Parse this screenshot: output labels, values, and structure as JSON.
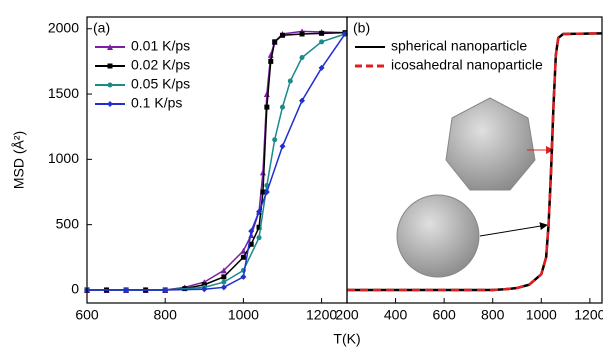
{
  "chart_data": [
    {
      "type": "line",
      "title": "(a)",
      "ylabel": "MSD (Å²)",
      "xlabel": "T(K)",
      "xlim": [
        600,
        1265
      ],
      "ylim": [
        -100,
        2090
      ],
      "xticks": [
        600,
        800,
        1000,
        1200
      ],
      "yticks": [
        0,
        500,
        1000,
        1500,
        2000
      ],
      "legend": "upper left",
      "series": [
        {
          "name": "0.01 K/ps",
          "color": "#7b1fa2",
          "marker": "triangle",
          "x": [
            600,
            650,
            700,
            750,
            800,
            850,
            900,
            950,
            1000,
            1020,
            1040,
            1050,
            1060,
            1070,
            1080,
            1100,
            1150,
            1200,
            1260
          ],
          "values": [
            0,
            0,
            0,
            0,
            0,
            20,
            60,
            150,
            300,
            420,
            600,
            900,
            1500,
            1800,
            1900,
            1960,
            1980,
            1975,
            1970
          ]
        },
        {
          "name": "0.02 K/ps",
          "color": "#000000",
          "marker": "square",
          "x": [
            600,
            650,
            700,
            750,
            800,
            850,
            900,
            950,
            1000,
            1020,
            1040,
            1050,
            1060,
            1070,
            1080,
            1100,
            1150,
            1200,
            1260
          ],
          "values": [
            0,
            0,
            0,
            0,
            0,
            10,
            40,
            100,
            250,
            350,
            480,
            750,
            1400,
            1750,
            1900,
            1950,
            1960,
            1965,
            1970
          ]
        },
        {
          "name": "0.05 K/ps",
          "color": "#1a8a8a",
          "marker": "star",
          "x": [
            600,
            700,
            800,
            900,
            950,
            1000,
            1040,
            1060,
            1080,
            1100,
            1120,
            1150,
            1200,
            1260
          ],
          "values": [
            0,
            0,
            0,
            20,
            60,
            150,
            400,
            800,
            1150,
            1400,
            1600,
            1780,
            1900,
            1960
          ]
        },
        {
          "name": "0.1 K/ps",
          "color": "#1f2fd0",
          "marker": "diamond",
          "x": [
            600,
            700,
            800,
            900,
            950,
            1000,
            1020,
            1040,
            1060,
            1100,
            1150,
            1200,
            1260
          ],
          "values": [
            0,
            0,
            0,
            5,
            20,
            100,
            450,
            600,
            750,
            1100,
            1450,
            1700,
            1960
          ]
        }
      ]
    },
    {
      "type": "line",
      "title": "(b)",
      "xlim": [
        200,
        1250
      ],
      "ylim": [
        -100,
        2090
      ],
      "xticks": [
        200,
        400,
        600,
        800,
        1000,
        1200
      ],
      "legend": "upper left",
      "series": [
        {
          "name": "spherical nanoparticle",
          "color": "#000000",
          "dash": false,
          "x": [
            200,
            400,
            600,
            800,
            850,
            900,
            950,
            1000,
            1020,
            1030,
            1040,
            1050,
            1060,
            1070,
            1090,
            1250
          ],
          "values": [
            0,
            0,
            0,
            0,
            5,
            15,
            40,
            120,
            250,
            500,
            900,
            1400,
            1800,
            1930,
            1960,
            1965
          ]
        },
        {
          "name": "icosahedral nanoparticle",
          "color": "#e02020",
          "dash": true,
          "x": [
            200,
            400,
            600,
            800,
            850,
            900,
            950,
            1000,
            1020,
            1030,
            1040,
            1050,
            1060,
            1070,
            1090,
            1250
          ],
          "values": [
            0,
            0,
            0,
            0,
            5,
            15,
            40,
            120,
            250,
            500,
            900,
            1400,
            1800,
            1930,
            1960,
            1965
          ]
        }
      ]
    }
  ]
}
